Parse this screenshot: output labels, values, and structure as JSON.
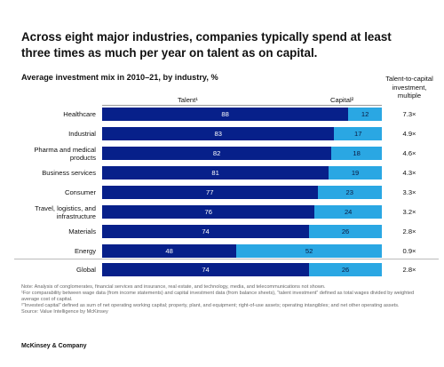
{
  "chart_data": {
    "type": "bar",
    "orientation": "horizontal",
    "stacked": true,
    "title": "Across eight major industries, companies typically spend at least three times as much per year on talent as on capital.",
    "subtitle": "Average investment mix in 2010–21, by industry, %",
    "categories": [
      "Healthcare",
      "Industrial",
      "Pharma and medical products",
      "Business services",
      "Consumer",
      "Travel, logistics, and infrastructure",
      "Materials",
      "Energy",
      "Global"
    ],
    "series": [
      {
        "name": "Talent¹",
        "color": "#07208a",
        "label_color": "#ffffff",
        "values": [
          88,
          83,
          82,
          81,
          77,
          76,
          74,
          48,
          74
        ]
      },
      {
        "name": "Capital²",
        "color": "#2aa7e3",
        "label_color": "#0a1a40",
        "values": [
          12,
          17,
          18,
          19,
          23,
          24,
          26,
          52,
          26
        ]
      }
    ],
    "xlim": [
      0,
      100
    ],
    "multiple_header": "Talent-to-capital investment, multiple",
    "multiples": [
      "7.3×",
      "4.9×",
      "4.6×",
      "4.3×",
      "3.3×",
      "3.2×",
      "2.8×",
      "0.9×",
      "2.8×"
    ]
  },
  "notes": [
    "Note: Analysis of conglomerates, financial services and insurance, real estate, and technology, media, and telecommunications not shown.",
    "¹For comparability between wage data (from income statements) and capital investment data (from balance sheets), “talent investment” defined as total wages divided by weighted average cost of capital.",
    "²“Invested capital” defined as sum of net operating working capital; property, plant, and equipment; right-of-use assets; operating intangibles; and net other operating assets.",
    "Source: Value Intelligence by McKinsey"
  ],
  "footer": "McKinsey & Company"
}
